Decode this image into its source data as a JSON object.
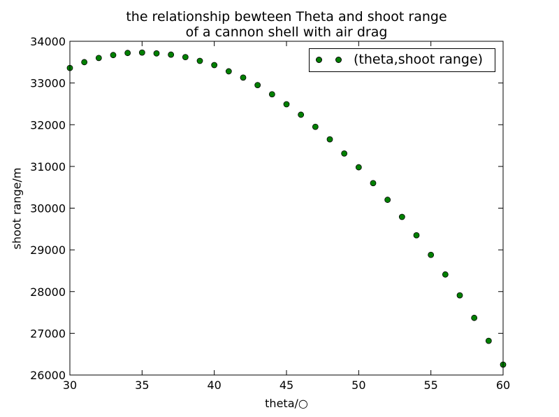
{
  "chart_data": {
    "type": "scatter",
    "title_lines": [
      "the relationship bewteen Theta and shoot range",
      "of a cannon shell with air drag"
    ],
    "xlabel": "theta/○",
    "ylabel": "shoot range/m",
    "xlim": [
      30,
      60
    ],
    "ylim": [
      26000,
      34000
    ],
    "xticks": [
      30,
      35,
      40,
      45,
      50,
      55,
      60
    ],
    "yticks": [
      26000,
      27000,
      28000,
      29000,
      30000,
      31000,
      32000,
      33000,
      34000
    ],
    "grid": false,
    "legend_position": "top-right",
    "series": [
      {
        "name": "(theta,shoot range)",
        "color": "#008000",
        "marker": "circle",
        "points": [
          [
            30,
            33360
          ],
          [
            31,
            33500
          ],
          [
            32,
            33600
          ],
          [
            33,
            33670
          ],
          [
            34,
            33720
          ],
          [
            35,
            33730
          ],
          [
            36,
            33710
          ],
          [
            37,
            33680
          ],
          [
            38,
            33620
          ],
          [
            39,
            33530
          ],
          [
            40,
            33430
          ],
          [
            41,
            33280
          ],
          [
            42,
            33130
          ],
          [
            43,
            32950
          ],
          [
            44,
            32730
          ],
          [
            45,
            32490
          ],
          [
            46,
            32240
          ],
          [
            47,
            31950
          ],
          [
            48,
            31650
          ],
          [
            49,
            31310
          ],
          [
            50,
            30980
          ],
          [
            51,
            30600
          ],
          [
            52,
            30200
          ],
          [
            53,
            29790
          ],
          [
            54,
            29350
          ],
          [
            55,
            28880
          ],
          [
            56,
            28410
          ],
          [
            57,
            27910
          ],
          [
            58,
            27370
          ],
          [
            59,
            26820
          ],
          [
            60,
            26250
          ]
        ]
      }
    ]
  }
}
